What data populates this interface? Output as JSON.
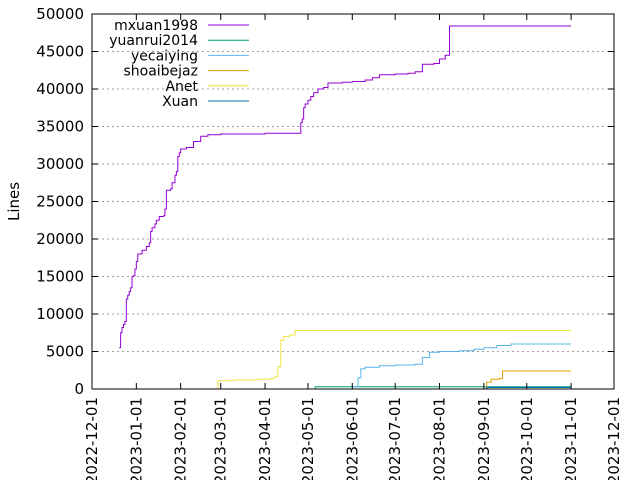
{
  "chart_data": {
    "type": "line",
    "title": "",
    "xlabel": "",
    "ylabel": "Lines",
    "xlim": [
      "2022-12-01",
      "2023-12-01"
    ],
    "ylim": [
      0,
      50000
    ],
    "x_tick_labels": [
      "2022-12-01",
      "2023-01-01",
      "2023-02-01",
      "2023-03-01",
      "2023-04-01",
      "2023-05-01",
      "2023-06-01",
      "2023-07-01",
      "2023-08-01",
      "2023-09-01",
      "2023-10-01",
      "2023-11-01",
      "2023-12-01"
    ],
    "y_tick_labels": [
      "0",
      "5000",
      "10000",
      "15000",
      "20000",
      "25000",
      "30000",
      "35000",
      "40000",
      "45000",
      "50000"
    ],
    "grid": "horizontal-dotted",
    "legend_position": "top-left",
    "series": [
      {
        "name": "mxuan1998",
        "color": "#9400d3",
        "points": [
          [
            "2022-12-20",
            5500
          ],
          [
            "2022-12-21",
            7500
          ],
          [
            "2022-12-22",
            8200
          ],
          [
            "2022-12-23",
            8600
          ],
          [
            "2022-12-24",
            9000
          ],
          [
            "2022-12-25",
            12000
          ],
          [
            "2022-12-26",
            12500
          ],
          [
            "2022-12-27",
            13000
          ],
          [
            "2022-12-28",
            13500
          ],
          [
            "2022-12-29",
            15000
          ],
          [
            "2022-12-30",
            15100
          ],
          [
            "2022-12-31",
            16000
          ],
          [
            "2023-01-01",
            17000
          ],
          [
            "2023-01-02",
            18000
          ],
          [
            "2023-01-05",
            18500
          ],
          [
            "2023-01-08",
            19000
          ],
          [
            "2023-01-10",
            19500
          ],
          [
            "2023-01-11",
            21000
          ],
          [
            "2023-01-12",
            21500
          ],
          [
            "2023-01-14",
            22000
          ],
          [
            "2023-01-15",
            22500
          ],
          [
            "2023-01-17",
            23000
          ],
          [
            "2023-01-20",
            23100
          ],
          [
            "2023-01-21",
            24000
          ],
          [
            "2023-01-22",
            26500
          ],
          [
            "2023-01-25",
            26700
          ],
          [
            "2023-01-26",
            27500
          ],
          [
            "2023-01-28",
            28500
          ],
          [
            "2023-01-29",
            29000
          ],
          [
            "2023-01-30",
            31000
          ],
          [
            "2023-01-31",
            31500
          ],
          [
            "2023-02-01",
            32000
          ],
          [
            "2023-02-05",
            32200
          ],
          [
            "2023-02-10",
            33000
          ],
          [
            "2023-02-15",
            33700
          ],
          [
            "2023-02-20",
            33900
          ],
          [
            "2023-03-01",
            34000
          ],
          [
            "2023-03-15",
            34000
          ],
          [
            "2023-04-01",
            34100
          ],
          [
            "2023-04-25",
            34100
          ],
          [
            "2023-04-26",
            35500
          ],
          [
            "2023-04-27",
            36000
          ],
          [
            "2023-04-28",
            37500
          ],
          [
            "2023-04-29",
            38000
          ],
          [
            "2023-05-01",
            38500
          ],
          [
            "2023-05-03",
            39000
          ],
          [
            "2023-05-05",
            39500
          ],
          [
            "2023-05-08",
            40000
          ],
          [
            "2023-05-12",
            40200
          ],
          [
            "2023-05-15",
            40800
          ],
          [
            "2023-05-25",
            40900
          ],
          [
            "2023-06-01",
            41000
          ],
          [
            "2023-06-10",
            41200
          ],
          [
            "2023-06-15",
            41500
          ],
          [
            "2023-06-20",
            41900
          ],
          [
            "2023-07-01",
            42000
          ],
          [
            "2023-07-10",
            42100
          ],
          [
            "2023-07-15",
            42300
          ],
          [
            "2023-07-20",
            43300
          ],
          [
            "2023-07-28",
            43400
          ],
          [
            "2023-08-01",
            44000
          ],
          [
            "2023-08-05",
            44500
          ],
          [
            "2023-08-08",
            48400
          ],
          [
            "2023-09-01",
            48400
          ],
          [
            "2023-10-01",
            48400
          ],
          [
            "2023-11-01",
            48400
          ]
        ]
      },
      {
        "name": "yuanrui2014",
        "color": "#009e73",
        "points": [
          [
            "2023-05-05",
            0
          ],
          [
            "2023-05-06",
            300
          ],
          [
            "2023-11-01",
            300
          ]
        ]
      },
      {
        "name": "yecaiying",
        "color": "#56b4e9",
        "points": [
          [
            "2023-05-06",
            0
          ],
          [
            "2023-06-01",
            300
          ],
          [
            "2023-06-05",
            1500
          ],
          [
            "2023-06-07",
            2700
          ],
          [
            "2023-06-10",
            2900
          ],
          [
            "2023-06-20",
            3100
          ],
          [
            "2023-07-01",
            3200
          ],
          [
            "2023-07-15",
            3300
          ],
          [
            "2023-07-20",
            4200
          ],
          [
            "2023-07-25",
            4900
          ],
          [
            "2023-08-01",
            5000
          ],
          [
            "2023-08-15",
            5100
          ],
          [
            "2023-08-25",
            5300
          ],
          [
            "2023-09-01",
            5500
          ],
          [
            "2023-09-10",
            5800
          ],
          [
            "2023-09-20",
            6000
          ],
          [
            "2023-10-01",
            6000
          ],
          [
            "2023-11-01",
            6000
          ]
        ]
      },
      {
        "name": "shoaibejaz",
        "color": "#e69f00",
        "points": [
          [
            "2023-09-01",
            0
          ],
          [
            "2023-09-03",
            900
          ],
          [
            "2023-09-06",
            1300
          ],
          [
            "2023-09-12",
            1400
          ],
          [
            "2023-09-14",
            2400
          ],
          [
            "2023-10-01",
            2400
          ],
          [
            "2023-11-01",
            2400
          ]
        ]
      },
      {
        "name": "Anet",
        "color": "#f0e442",
        "points": [
          [
            "2023-02-25",
            0
          ],
          [
            "2023-02-27",
            1100
          ],
          [
            "2023-03-10",
            1200
          ],
          [
            "2023-03-25",
            1300
          ],
          [
            "2023-04-05",
            1400
          ],
          [
            "2023-04-08",
            1700
          ],
          [
            "2023-04-10",
            3000
          ],
          [
            "2023-04-12",
            6500
          ],
          [
            "2023-04-14",
            7000
          ],
          [
            "2023-04-18",
            7200
          ],
          [
            "2023-04-22",
            7800
          ],
          [
            "2023-05-01",
            7800
          ],
          [
            "2023-08-01",
            7800
          ],
          [
            "2023-11-01",
            7800
          ]
        ]
      },
      {
        "name": "Xuan",
        "color": "#0072b2",
        "points": [
          [
            "2023-09-01",
            0
          ],
          [
            "2023-09-03",
            200
          ],
          [
            "2023-11-01",
            200
          ]
        ]
      }
    ]
  }
}
